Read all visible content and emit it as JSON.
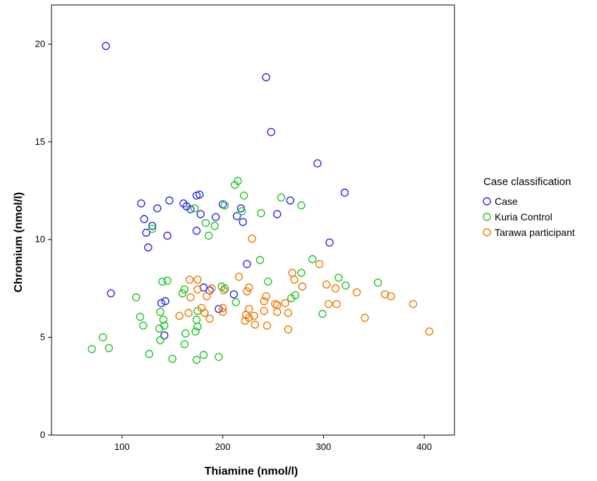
{
  "chart_data": {
    "type": "scatter",
    "title": "",
    "xlabel": "Thiamine (nmol/l)",
    "ylabel": "Chromium (nmol/l)",
    "xlim": [
      30,
      430
    ],
    "ylim": [
      0,
      22
    ],
    "x_ticks": [
      100,
      200,
      300,
      400
    ],
    "y_ticks": [
      0,
      5,
      10,
      15,
      20
    ],
    "grid": false,
    "legend": {
      "title": "Case classification",
      "position": "right"
    },
    "series": [
      {
        "name": "Case",
        "color": "#2b2bdb",
        "points": [
          [
            84,
            19.9
          ],
          [
            243,
            18.3
          ],
          [
            248,
            15.5
          ],
          [
            294,
            13.9
          ],
          [
            321,
            12.4
          ],
          [
            119,
            11.85
          ],
          [
            135,
            11.6
          ],
          [
            147,
            12.0
          ],
          [
            161,
            11.85
          ],
          [
            164,
            11.7
          ],
          [
            168,
            11.55
          ],
          [
            174,
            12.25
          ],
          [
            177,
            12.3
          ],
          [
            178,
            11.3
          ],
          [
            200,
            11.8
          ],
          [
            214,
            11.2
          ],
          [
            218,
            11.6
          ],
          [
            220,
            10.9
          ],
          [
            254,
            11.3
          ],
          [
            267,
            12.0
          ],
          [
            122,
            11.05
          ],
          [
            130,
            10.7
          ],
          [
            124,
            10.35
          ],
          [
            145,
            10.2
          ],
          [
            126,
            9.6
          ],
          [
            174,
            10.45
          ],
          [
            193,
            11.15
          ],
          [
            306,
            9.85
          ],
          [
            224,
            8.75
          ],
          [
            89,
            7.25
          ],
          [
            139,
            6.75
          ],
          [
            143,
            6.85
          ],
          [
            181,
            7.55
          ],
          [
            187,
            7.4
          ],
          [
            211,
            7.2
          ],
          [
            196,
            6.45
          ],
          [
            142,
            5.1
          ]
        ]
      },
      {
        "name": "Kuria Control",
        "color": "#22c422",
        "points": [
          [
            215,
            13.0
          ],
          [
            212,
            12.8
          ],
          [
            221,
            12.25
          ],
          [
            258,
            12.15
          ],
          [
            278,
            11.75
          ],
          [
            202,
            11.75
          ],
          [
            238,
            11.35
          ],
          [
            172,
            11.6
          ],
          [
            219,
            11.45
          ],
          [
            130,
            10.55
          ],
          [
            183,
            10.85
          ],
          [
            192,
            10.7
          ],
          [
            186,
            10.2
          ],
          [
            237,
            8.95
          ],
          [
            289,
            9.0
          ],
          [
            278,
            8.3
          ],
          [
            315,
            8.05
          ],
          [
            322,
            7.65
          ],
          [
            354,
            7.8
          ],
          [
            245,
            7.85
          ],
          [
            140,
            7.85
          ],
          [
            145,
            7.9
          ],
          [
            114,
            7.05
          ],
          [
            160,
            7.25
          ],
          [
            162,
            7.45
          ],
          [
            199,
            7.6
          ],
          [
            202,
            7.5
          ],
          [
            268,
            7.0
          ],
          [
            272,
            7.15
          ],
          [
            213,
            6.8
          ],
          [
            118,
            6.05
          ],
          [
            138,
            6.3
          ],
          [
            175,
            6.35
          ],
          [
            174,
            5.9
          ],
          [
            299,
            6.2
          ],
          [
            141,
            5.9
          ],
          [
            121,
            5.6
          ],
          [
            142,
            5.6
          ],
          [
            175,
            5.55
          ],
          [
            137,
            5.45
          ],
          [
            163,
            5.2
          ],
          [
            81,
            5.0
          ],
          [
            173,
            5.3
          ],
          [
            138,
            4.85
          ],
          [
            70,
            4.4
          ],
          [
            87,
            4.45
          ],
          [
            162,
            4.65
          ],
          [
            127,
            4.15
          ],
          [
            181,
            4.1
          ],
          [
            150,
            3.9
          ],
          [
            174,
            3.85
          ],
          [
            196,
            4.0
          ]
        ]
      },
      {
        "name": "Tarawa participant",
        "color": "#f07800",
        "points": [
          [
            229,
            10.05
          ],
          [
            296,
            8.75
          ],
          [
            269,
            8.3
          ],
          [
            216,
            8.1
          ],
          [
            167,
            7.95
          ],
          [
            175,
            7.95
          ],
          [
            271,
            7.95
          ],
          [
            303,
            7.7
          ],
          [
            279,
            7.6
          ],
          [
            312,
            7.5
          ],
          [
            226,
            7.55
          ],
          [
            201,
            7.4
          ],
          [
            175,
            7.45
          ],
          [
            189,
            7.5
          ],
          [
            224,
            7.35
          ],
          [
            361,
            7.2
          ],
          [
            367,
            7.1
          ],
          [
            333,
            7.3
          ],
          [
            243,
            7.1
          ],
          [
            168,
            7.05
          ],
          [
            184,
            7.1
          ],
          [
            241,
            6.85
          ],
          [
            252,
            6.7
          ],
          [
            254,
            6.65
          ],
          [
            262,
            6.75
          ],
          [
            305,
            6.7
          ],
          [
            313,
            6.7
          ],
          [
            389,
            6.7
          ],
          [
            179,
            6.5
          ],
          [
            200,
            6.5
          ],
          [
            226,
            6.45
          ],
          [
            241,
            6.35
          ],
          [
            254,
            6.3
          ],
          [
            265,
            6.25
          ],
          [
            200,
            6.3
          ],
          [
            182,
            6.25
          ],
          [
            166,
            6.25
          ],
          [
            157,
            6.1
          ],
          [
            223,
            6.15
          ],
          [
            226,
            6.0
          ],
          [
            231,
            6.1
          ],
          [
            187,
            5.95
          ],
          [
            222,
            5.85
          ],
          [
            341,
            6.0
          ],
          [
            232,
            5.65
          ],
          [
            244,
            5.6
          ],
          [
            265,
            5.4
          ],
          [
            405,
            5.3
          ]
        ]
      }
    ]
  }
}
